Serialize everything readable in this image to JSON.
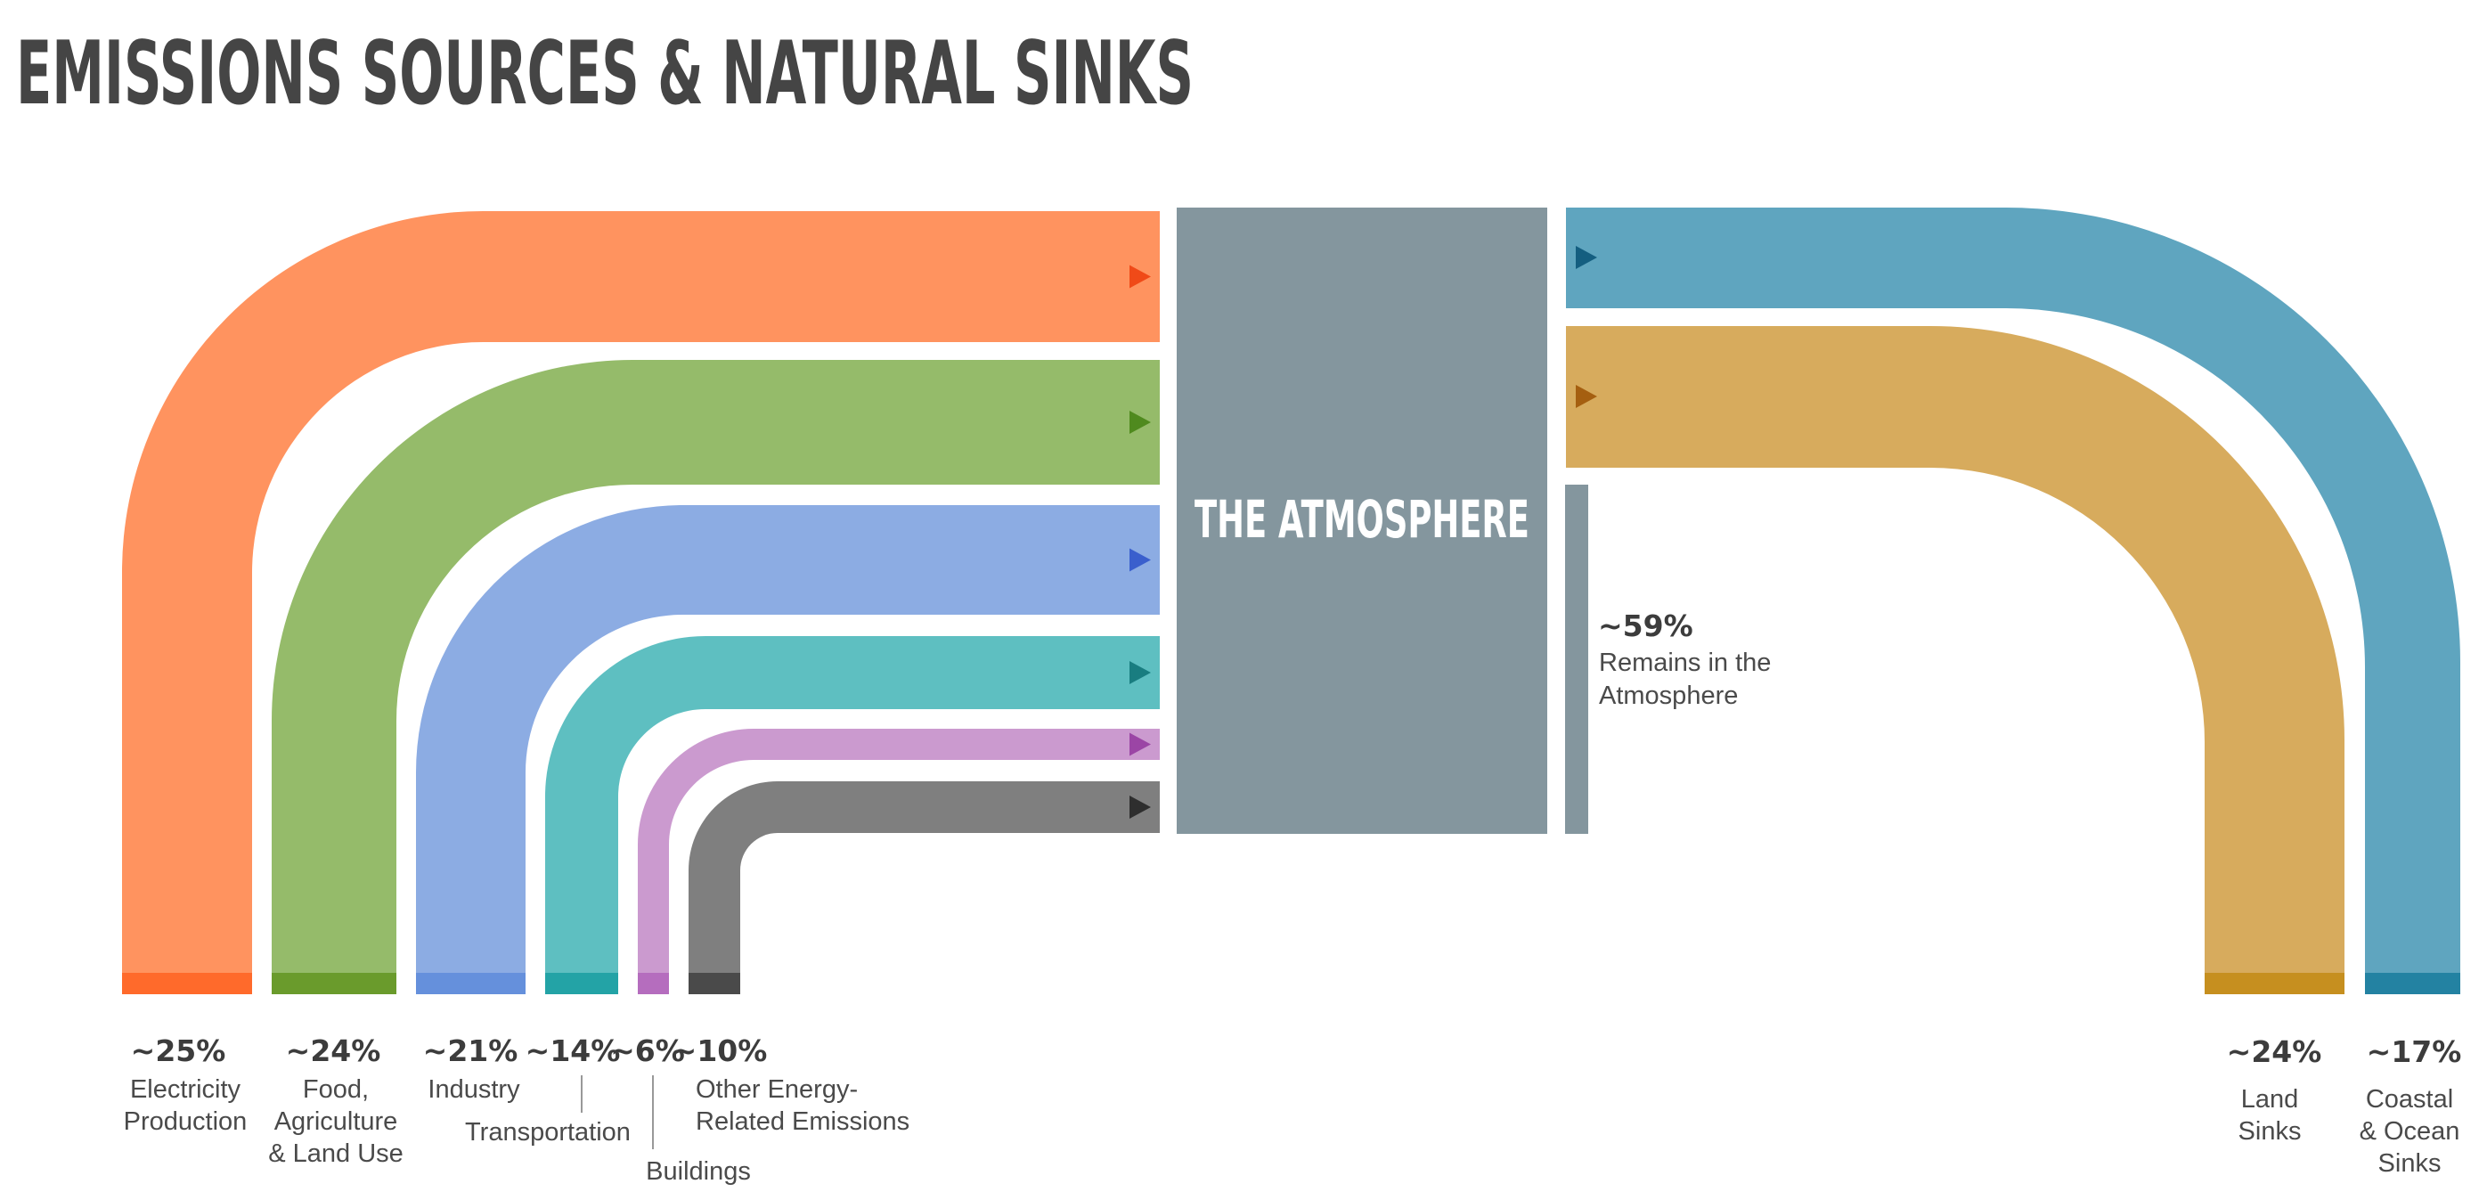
{
  "title": "EMISSIONS SOURCES & NATURAL SINKS",
  "center_box": {
    "label": "THE ATMOSPHERE"
  },
  "sources": [
    {
      "id": "electricity",
      "percent": "~25%",
      "label_lines": [
        "Electricity",
        "Production"
      ],
      "color": "#ff935f",
      "foot_color": "#ff6a2b",
      "arrow_color": "#f04a18"
    },
    {
      "id": "food",
      "percent": "~24%",
      "label_lines": [
        "Food,",
        "Agriculture",
        "& Land Use"
      ],
      "color": "#95bb6a",
      "foot_color": "#6a9b2c",
      "arrow_color": "#4f8a1e"
    },
    {
      "id": "industry",
      "percent": "~21%",
      "label_lines": [
        "Industry"
      ],
      "color": "#8cace3",
      "foot_color": "#6590dc",
      "arrow_color": "#3a5fcd"
    },
    {
      "id": "transportation",
      "percent": "~14%",
      "label_lines": [
        "Transportation"
      ],
      "color": "#5ebfc1",
      "foot_color": "#23a3a6",
      "arrow_color": "#197d80"
    },
    {
      "id": "buildings",
      "percent": "~6%",
      "label_lines": [
        "Buildings"
      ],
      "color": "#cb9acf",
      "foot_color": "#b56dbe",
      "arrow_color": "#9b45a5"
    },
    {
      "id": "other",
      "percent": "~10%",
      "label_lines": [
        "Other Energy-",
        "Related Emissions"
      ],
      "color": "#7f7f7f",
      "foot_color": "#4a4a4a",
      "arrow_color": "#2e2e2e"
    }
  ],
  "remains": {
    "percent": "~59%",
    "label_lines": [
      "Remains in the",
      "Atmosphere"
    ],
    "color": "#84969e"
  },
  "sinks": [
    {
      "id": "coastal-ocean",
      "percent": "~17%",
      "label_lines": [
        "Coastal",
        "& Ocean",
        "Sinks"
      ],
      "color": "#5fa5bf",
      "foot_color": "#2382a2",
      "arrow_color": "#145e80"
    },
    {
      "id": "land",
      "percent": "~24%",
      "label_lines": [
        "Land",
        "Sinks"
      ],
      "color": "#d7ab5d",
      "foot_color": "#c68f1f",
      "arrow_color": "#a55f10"
    }
  ],
  "box_color": "#84969e"
}
